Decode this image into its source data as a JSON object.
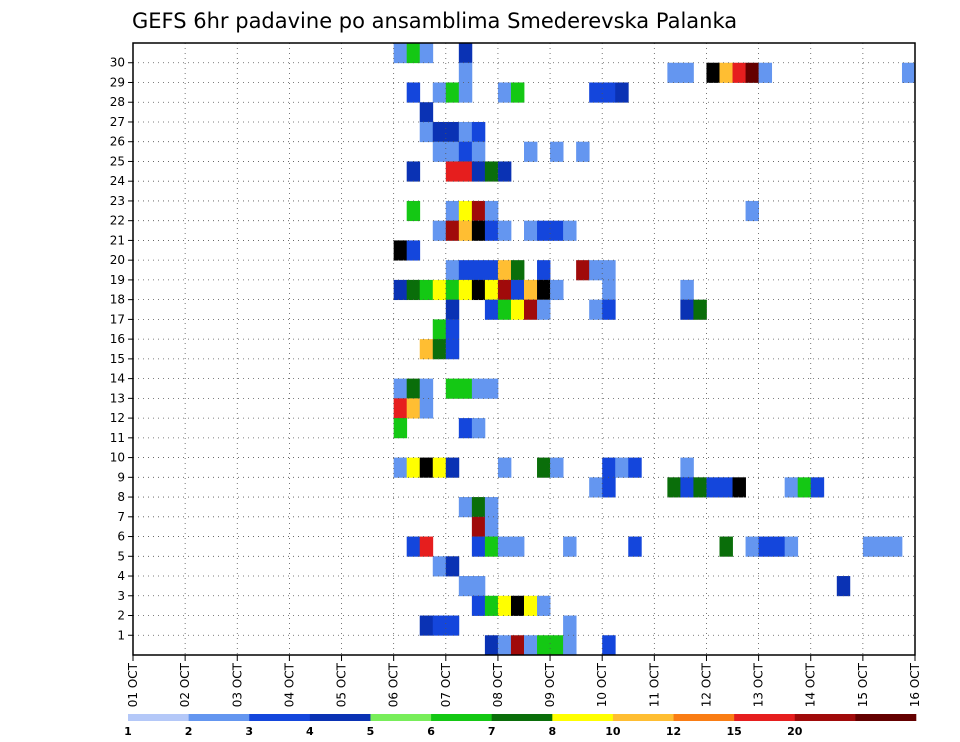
{
  "chart_data": {
    "type": "heatmap",
    "title": "GEFS 6hr padavine po ansamblima Smederevska Palanka",
    "xlabel": "",
    "ylabel": "",
    "x_ticks": [
      "01 OCT",
      "02 OCT",
      "03 OCT",
      "04 OCT",
      "05 OCT",
      "06 OCT",
      "07 OCT",
      "08 OCT",
      "09 OCT",
      "10 OCT",
      "11 OCT",
      "12 OCT",
      "13 OCT",
      "14 OCT",
      "15 OCT",
      "16 OCT"
    ],
    "y_ticks": [
      "1",
      "2",
      "3",
      "4",
      "5",
      "6",
      "7",
      "8",
      "9",
      "10",
      "11",
      "12",
      "13",
      "14",
      "15",
      "16",
      "17",
      "18",
      "19",
      "20",
      "21",
      "22",
      "23",
      "24",
      "25",
      "26",
      "27",
      "28",
      "29",
      "30"
    ],
    "xlim": [
      0,
      60
    ],
    "ylim": [
      0,
      30
    ],
    "grid": true,
    "colorbar": {
      "labels": [
        "1",
        "2",
        "3",
        "4",
        "5",
        "6",
        "7",
        "8",
        "10",
        "12",
        "15",
        "20"
      ],
      "colors": [
        "#b4c8f8",
        "#6496f0",
        "#1446dc",
        "#0a32b4",
        "#78ee5a",
        "#14c814",
        "#0a6e0a",
        "#ffff00",
        "#ffbe32",
        "#fa7d14",
        "#e61e1e",
        "#a00a0a",
        "#640000"
      ]
    },
    "cells": [
      [
        20,
        30,
        1
      ],
      [
        21,
        30,
        5
      ],
      [
        22,
        30,
        1
      ],
      [
        25,
        30,
        3
      ],
      [
        25,
        29,
        1
      ],
      [
        41,
        29,
        1
      ],
      [
        42,
        29,
        1
      ],
      [
        44,
        29,
        13
      ],
      [
        45,
        29,
        8
      ],
      [
        46,
        29,
        10
      ],
      [
        47,
        29,
        12
      ],
      [
        48,
        29,
        1
      ],
      [
        59,
        29,
        1
      ],
      [
        21,
        28,
        2
      ],
      [
        23,
        28,
        1
      ],
      [
        24,
        28,
        5
      ],
      [
        25,
        28,
        1
      ],
      [
        28,
        28,
        1
      ],
      [
        29,
        28,
        5
      ],
      [
        35,
        28,
        2
      ],
      [
        36,
        28,
        2
      ],
      [
        37,
        28,
        3
      ],
      [
        22,
        27,
        3
      ],
      [
        22,
        26,
        1
      ],
      [
        23,
        26,
        3
      ],
      [
        24,
        26,
        3
      ],
      [
        25,
        26,
        1
      ],
      [
        26,
        26,
        2
      ],
      [
        23,
        25,
        1
      ],
      [
        24,
        25,
        1
      ],
      [
        25,
        25,
        2
      ],
      [
        26,
        25,
        1
      ],
      [
        30,
        25,
        1
      ],
      [
        32,
        25,
        1
      ],
      [
        34,
        25,
        1
      ],
      [
        21,
        24,
        3
      ],
      [
        24,
        24,
        10
      ],
      [
        25,
        24,
        10
      ],
      [
        26,
        24,
        3
      ],
      [
        27,
        24,
        6
      ],
      [
        28,
        24,
        3
      ],
      [
        21,
        22,
        5
      ],
      [
        24,
        22,
        1
      ],
      [
        25,
        22,
        7
      ],
      [
        26,
        22,
        11
      ],
      [
        27,
        22,
        1
      ],
      [
        47,
        22,
        1
      ],
      [
        23,
        21,
        1
      ],
      [
        24,
        21,
        11
      ],
      [
        25,
        21,
        8
      ],
      [
        26,
        21,
        13
      ],
      [
        27,
        21,
        2
      ],
      [
        28,
        21,
        1
      ],
      [
        30,
        21,
        1
      ],
      [
        31,
        21,
        2
      ],
      [
        32,
        21,
        2
      ],
      [
        33,
        21,
        1
      ],
      [
        20,
        20,
        13
      ],
      [
        21,
        20,
        2
      ],
      [
        24,
        19,
        1
      ],
      [
        25,
        19,
        2
      ],
      [
        26,
        19,
        2
      ],
      [
        27,
        19,
        2
      ],
      [
        28,
        19,
        8
      ],
      [
        29,
        19,
        6
      ],
      [
        31,
        19,
        2
      ],
      [
        34,
        19,
        11
      ],
      [
        35,
        19,
        1
      ],
      [
        36,
        19,
        1
      ],
      [
        20,
        18,
        3
      ],
      [
        21,
        18,
        6
      ],
      [
        22,
        18,
        5
      ],
      [
        23,
        18,
        7
      ],
      [
        24,
        18,
        5
      ],
      [
        25,
        18,
        7
      ],
      [
        26,
        18,
        13
      ],
      [
        27,
        18,
        7
      ],
      [
        28,
        18,
        11
      ],
      [
        29,
        18,
        2
      ],
      [
        30,
        18,
        8
      ],
      [
        31,
        18,
        14
      ],
      [
        32,
        18,
        1
      ],
      [
        36,
        18,
        1
      ],
      [
        42,
        18,
        1
      ],
      [
        24,
        17,
        3
      ],
      [
        27,
        17,
        2
      ],
      [
        28,
        17,
        5
      ],
      [
        29,
        17,
        7
      ],
      [
        30,
        17,
        11
      ],
      [
        31,
        17,
        1
      ],
      [
        35,
        17,
        1
      ],
      [
        36,
        17,
        2
      ],
      [
        42,
        17,
        3
      ],
      [
        43,
        17,
        6
      ],
      [
        23,
        16,
        5
      ],
      [
        24,
        16,
        2
      ],
      [
        22,
        15,
        8
      ],
      [
        23,
        15,
        6
      ],
      [
        24,
        15,
        2
      ],
      [
        20,
        13,
        1
      ],
      [
        21,
        13,
        6
      ],
      [
        22,
        13,
        1
      ],
      [
        24,
        13,
        5
      ],
      [
        25,
        13,
        5
      ],
      [
        26,
        13,
        1
      ],
      [
        27,
        13,
        1
      ],
      [
        20,
        12,
        10
      ],
      [
        21,
        12,
        8
      ],
      [
        22,
        12,
        1
      ],
      [
        20,
        11,
        5
      ],
      [
        25,
        11,
        2
      ],
      [
        26,
        11,
        1
      ],
      [
        20,
        9,
        1
      ],
      [
        21,
        9,
        7
      ],
      [
        22,
        9,
        14
      ],
      [
        23,
        9,
        7
      ],
      [
        24,
        9,
        3
      ],
      [
        28,
        9,
        1
      ],
      [
        31,
        9,
        6
      ],
      [
        32,
        9,
        1
      ],
      [
        36,
        9,
        2
      ],
      [
        37,
        9,
        1
      ],
      [
        38,
        9,
        2
      ],
      [
        42,
        9,
        1
      ],
      [
        35,
        8,
        1
      ],
      [
        36,
        8,
        2
      ],
      [
        41,
        8,
        6
      ],
      [
        42,
        8,
        2
      ],
      [
        43,
        8,
        6
      ],
      [
        44,
        8,
        2
      ],
      [
        45,
        8,
        2
      ],
      [
        46,
        8,
        14
      ],
      [
        50,
        8,
        1
      ],
      [
        51,
        8,
        5
      ],
      [
        52,
        8,
        2
      ],
      [
        25,
        7,
        1
      ],
      [
        26,
        7,
        6
      ],
      [
        27,
        7,
        1
      ],
      [
        26,
        6,
        11
      ],
      [
        27,
        6,
        1
      ],
      [
        21,
        5,
        2
      ],
      [
        22,
        5,
        10
      ],
      [
        26,
        5,
        2
      ],
      [
        27,
        5,
        5
      ],
      [
        28,
        5,
        1
      ],
      [
        29,
        5,
        1
      ],
      [
        33,
        5,
        1
      ],
      [
        38,
        5,
        2
      ],
      [
        45,
        5,
        6
      ],
      [
        47,
        5,
        1
      ],
      [
        48,
        5,
        2
      ],
      [
        49,
        5,
        2
      ],
      [
        50,
        5,
        1
      ],
      [
        56,
        5,
        1
      ],
      [
        57,
        5,
        1
      ],
      [
        58,
        5,
        1
      ],
      [
        23,
        4,
        1
      ],
      [
        24,
        4,
        3
      ],
      [
        25,
        3,
        1
      ],
      [
        26,
        3,
        1
      ],
      [
        54,
        3,
        3
      ],
      [
        26,
        2,
        2
      ],
      [
        27,
        2,
        5
      ],
      [
        28,
        2,
        7
      ],
      [
        29,
        2,
        13
      ],
      [
        30,
        2,
        7
      ],
      [
        31,
        2,
        1
      ],
      [
        22,
        1,
        3
      ],
      [
        23,
        1,
        2
      ],
      [
        24,
        1,
        2
      ],
      [
        33,
        1,
        1
      ],
      [
        27,
        0,
        3
      ],
      [
        28,
        0,
        1
      ],
      [
        29,
        0,
        11
      ],
      [
        30,
        0,
        1
      ],
      [
        31,
        0,
        5
      ],
      [
        32,
        0,
        5
      ],
      [
        33,
        0,
        1
      ],
      [
        36,
        0,
        2
      ]
    ]
  }
}
